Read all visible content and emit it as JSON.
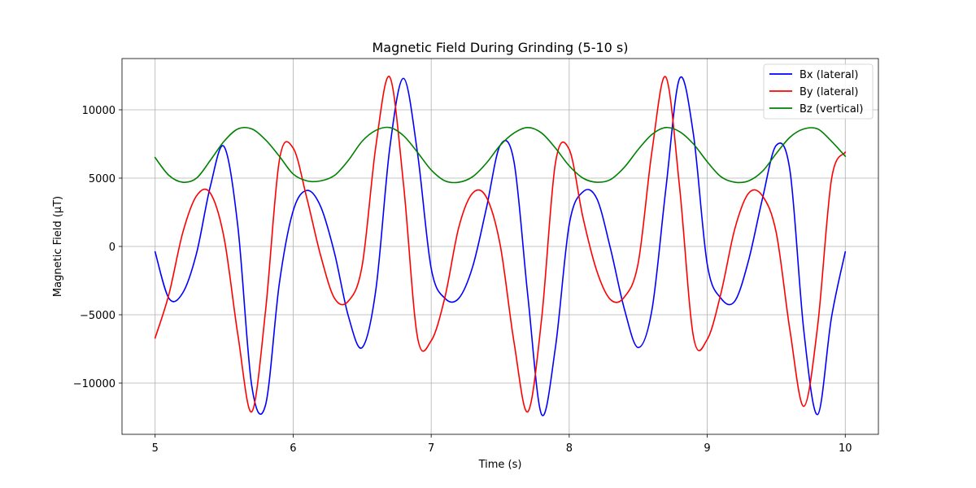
{
  "chart_data": {
    "type": "line",
    "title": "Magnetic Field During Grinding (5-10 s)",
    "xlabel": "Time (s)",
    "ylabel": "Magnetic Field (μT)",
    "xlim": [
      4.76,
      10.24
    ],
    "ylim": [
      -13750,
      13750
    ],
    "x_ticks": [
      5,
      6,
      7,
      8,
      9,
      10
    ],
    "x_tick_labels": [
      "5",
      "6",
      "7",
      "8",
      "9",
      "10"
    ],
    "y_ticks": [
      -10000,
      -5000,
      0,
      5000,
      10000
    ],
    "y_tick_labels": [
      "−10000",
      "−5000",
      "0",
      "5000",
      "10000"
    ],
    "grid": true,
    "legend_position": "top-right",
    "x": [
      5.0,
      5.1,
      5.2,
      5.3,
      5.4,
      5.5,
      5.6,
      5.7,
      5.8,
      5.9,
      6.0,
      6.1,
      6.2,
      6.3,
      6.4,
      6.5,
      6.6,
      6.7,
      6.8,
      6.9,
      7.0,
      7.1,
      7.2,
      7.3,
      7.4,
      7.5,
      7.6,
      7.7,
      7.8,
      7.9,
      8.0,
      8.1,
      8.2,
      8.3,
      8.4,
      8.5,
      8.6,
      8.7,
      8.8,
      8.9,
      9.0,
      9.1,
      9.2,
      9.3,
      9.4,
      9.5,
      9.6,
      9.7,
      9.8,
      9.9,
      10.0
    ],
    "series": [
      {
        "name": "Bx (lateral)",
        "color": "#0000ff",
        "values": [
          -400,
          -3800,
          -3400,
          -500,
          4400,
          7300,
          1400,
          -10200,
          -11600,
          -2700,
          2600,
          4100,
          2900,
          -500,
          -5100,
          -7400,
          -3100,
          7200,
          12300,
          6900,
          -1600,
          -3800,
          -3800,
          -1500,
          2800,
          7400,
          6200,
          -3600,
          -12300,
          -7400,
          1600,
          4000,
          3500,
          -200,
          -4600,
          -7400,
          -4600,
          4200,
          12300,
          8200,
          -1300,
          -3800,
          -4000,
          -1000,
          3500,
          7400,
          5500,
          -6200,
          -12300,
          -5200,
          -400
        ]
      },
      {
        "name": "By (lateral)",
        "color": "#ff0000",
        "values": [
          -6700,
          -3500,
          1000,
          3700,
          3900,
          600,
          -6500,
          -12100,
          -4700,
          6300,
          7200,
          3500,
          -700,
          -3800,
          -4000,
          -1400,
          7400,
          12400,
          4500,
          -6600,
          -6900,
          -3700,
          1400,
          3900,
          3600,
          100,
          -7000,
          -12100,
          -5300,
          6100,
          7100,
          2100,
          -1800,
          -3900,
          -3700,
          -1200,
          7000,
          12400,
          4300,
          -6600,
          -6800,
          -3400,
          1300,
          3900,
          3700,
          1000,
          -6200,
          -11700,
          -5800,
          4900,
          6900
        ]
      },
      {
        "name": "Bz (vertical)",
        "color": "#008000",
        "values": [
          6500,
          5200,
          4700,
          5000,
          6300,
          7700,
          8600,
          8600,
          7800,
          6600,
          5300,
          4800,
          4800,
          5200,
          6300,
          7700,
          8500,
          8700,
          8100,
          6900,
          5600,
          4800,
          4700,
          5100,
          6100,
          7400,
          8300,
          8700,
          8300,
          7200,
          5900,
          5000,
          4700,
          4900,
          5800,
          7100,
          8200,
          8700,
          8400,
          7500,
          6200,
          5100,
          4700,
          4800,
          5500,
          6800,
          8000,
          8600,
          8600,
          7700,
          6600
        ]
      }
    ]
  }
}
